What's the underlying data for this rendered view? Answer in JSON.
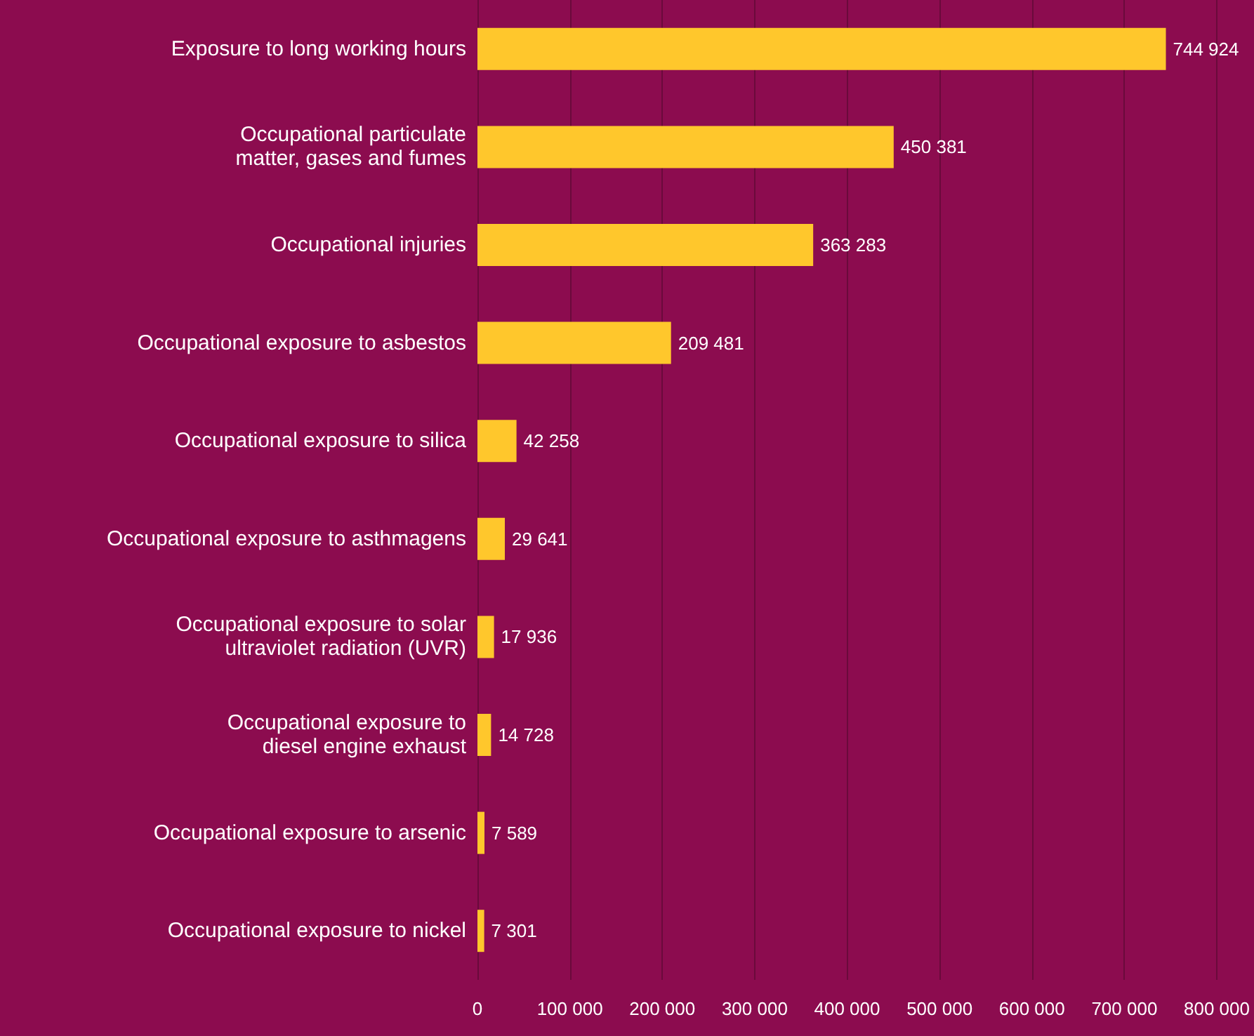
{
  "chart_data": {
    "type": "bar",
    "orientation": "horizontal",
    "categories": [
      "Exposure to long working hours",
      "Occupational particulate\nmatter, gases and fumes",
      "Occupational injuries",
      "Occupational exposure to asbestos",
      "Occupational exposure to silica",
      "Occupational exposure to asthmagens",
      "Occupational exposure to solar\nultraviolet radiation (UVR)",
      "Occupational exposure to\ndiesel engine exhaust",
      "Occupational exposure to arsenic",
      "Occupational exposure to nickel"
    ],
    "values": [
      744924,
      450381,
      363283,
      209481,
      42258,
      29641,
      17936,
      14728,
      7589,
      7301
    ],
    "value_labels": [
      "744 924",
      "450 381",
      "363 283",
      "209 481",
      "42 258",
      "29 641",
      "17 936",
      "14 728",
      "7 589",
      "7 301"
    ],
    "color": "#ffc72c",
    "xlim": [
      0,
      800000
    ],
    "xticks": [
      {
        "value": 0,
        "label": "0"
      },
      {
        "value": 100000,
        "label": "100 000"
      },
      {
        "value": 200000,
        "label": "200 000"
      },
      {
        "value": 300000,
        "label": "300 000"
      },
      {
        "value": 400000,
        "label": "400 000"
      },
      {
        "value": 500000,
        "label": "500 000"
      },
      {
        "value": 600000,
        "label": "600 000"
      },
      {
        "value": 700000,
        "label": "700 000"
      },
      {
        "value": 800000,
        "label": "800 000"
      }
    ],
    "grid": "x"
  }
}
